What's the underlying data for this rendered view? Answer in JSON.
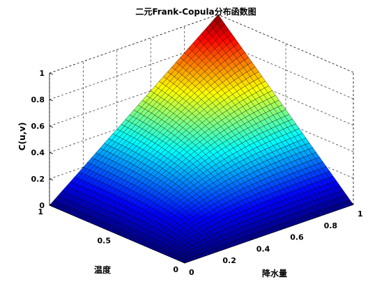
{
  "chart_data": {
    "type": "surface",
    "title": "二元Frank-Copula分布函数图",
    "xlabel": "降水量",
    "ylabel": "温度",
    "zlabel": "C(u,v)",
    "xlim": [
      0,
      1
    ],
    "ylim": [
      0,
      1
    ],
    "zlim": [
      0,
      1
    ],
    "x_ticks": [
      "0",
      "0.2",
      "0.4",
      "0.6",
      "0.8",
      "1"
    ],
    "y_ticks": [
      "0",
      "0.5",
      "1"
    ],
    "z_ticks": [
      "0",
      "0.2",
      "0.4",
      "0.6",
      "0.8",
      "1"
    ],
    "copula": "Frank",
    "grid_n": 41,
    "colormap": "jet",
    "grid": true,
    "box": true
  }
}
